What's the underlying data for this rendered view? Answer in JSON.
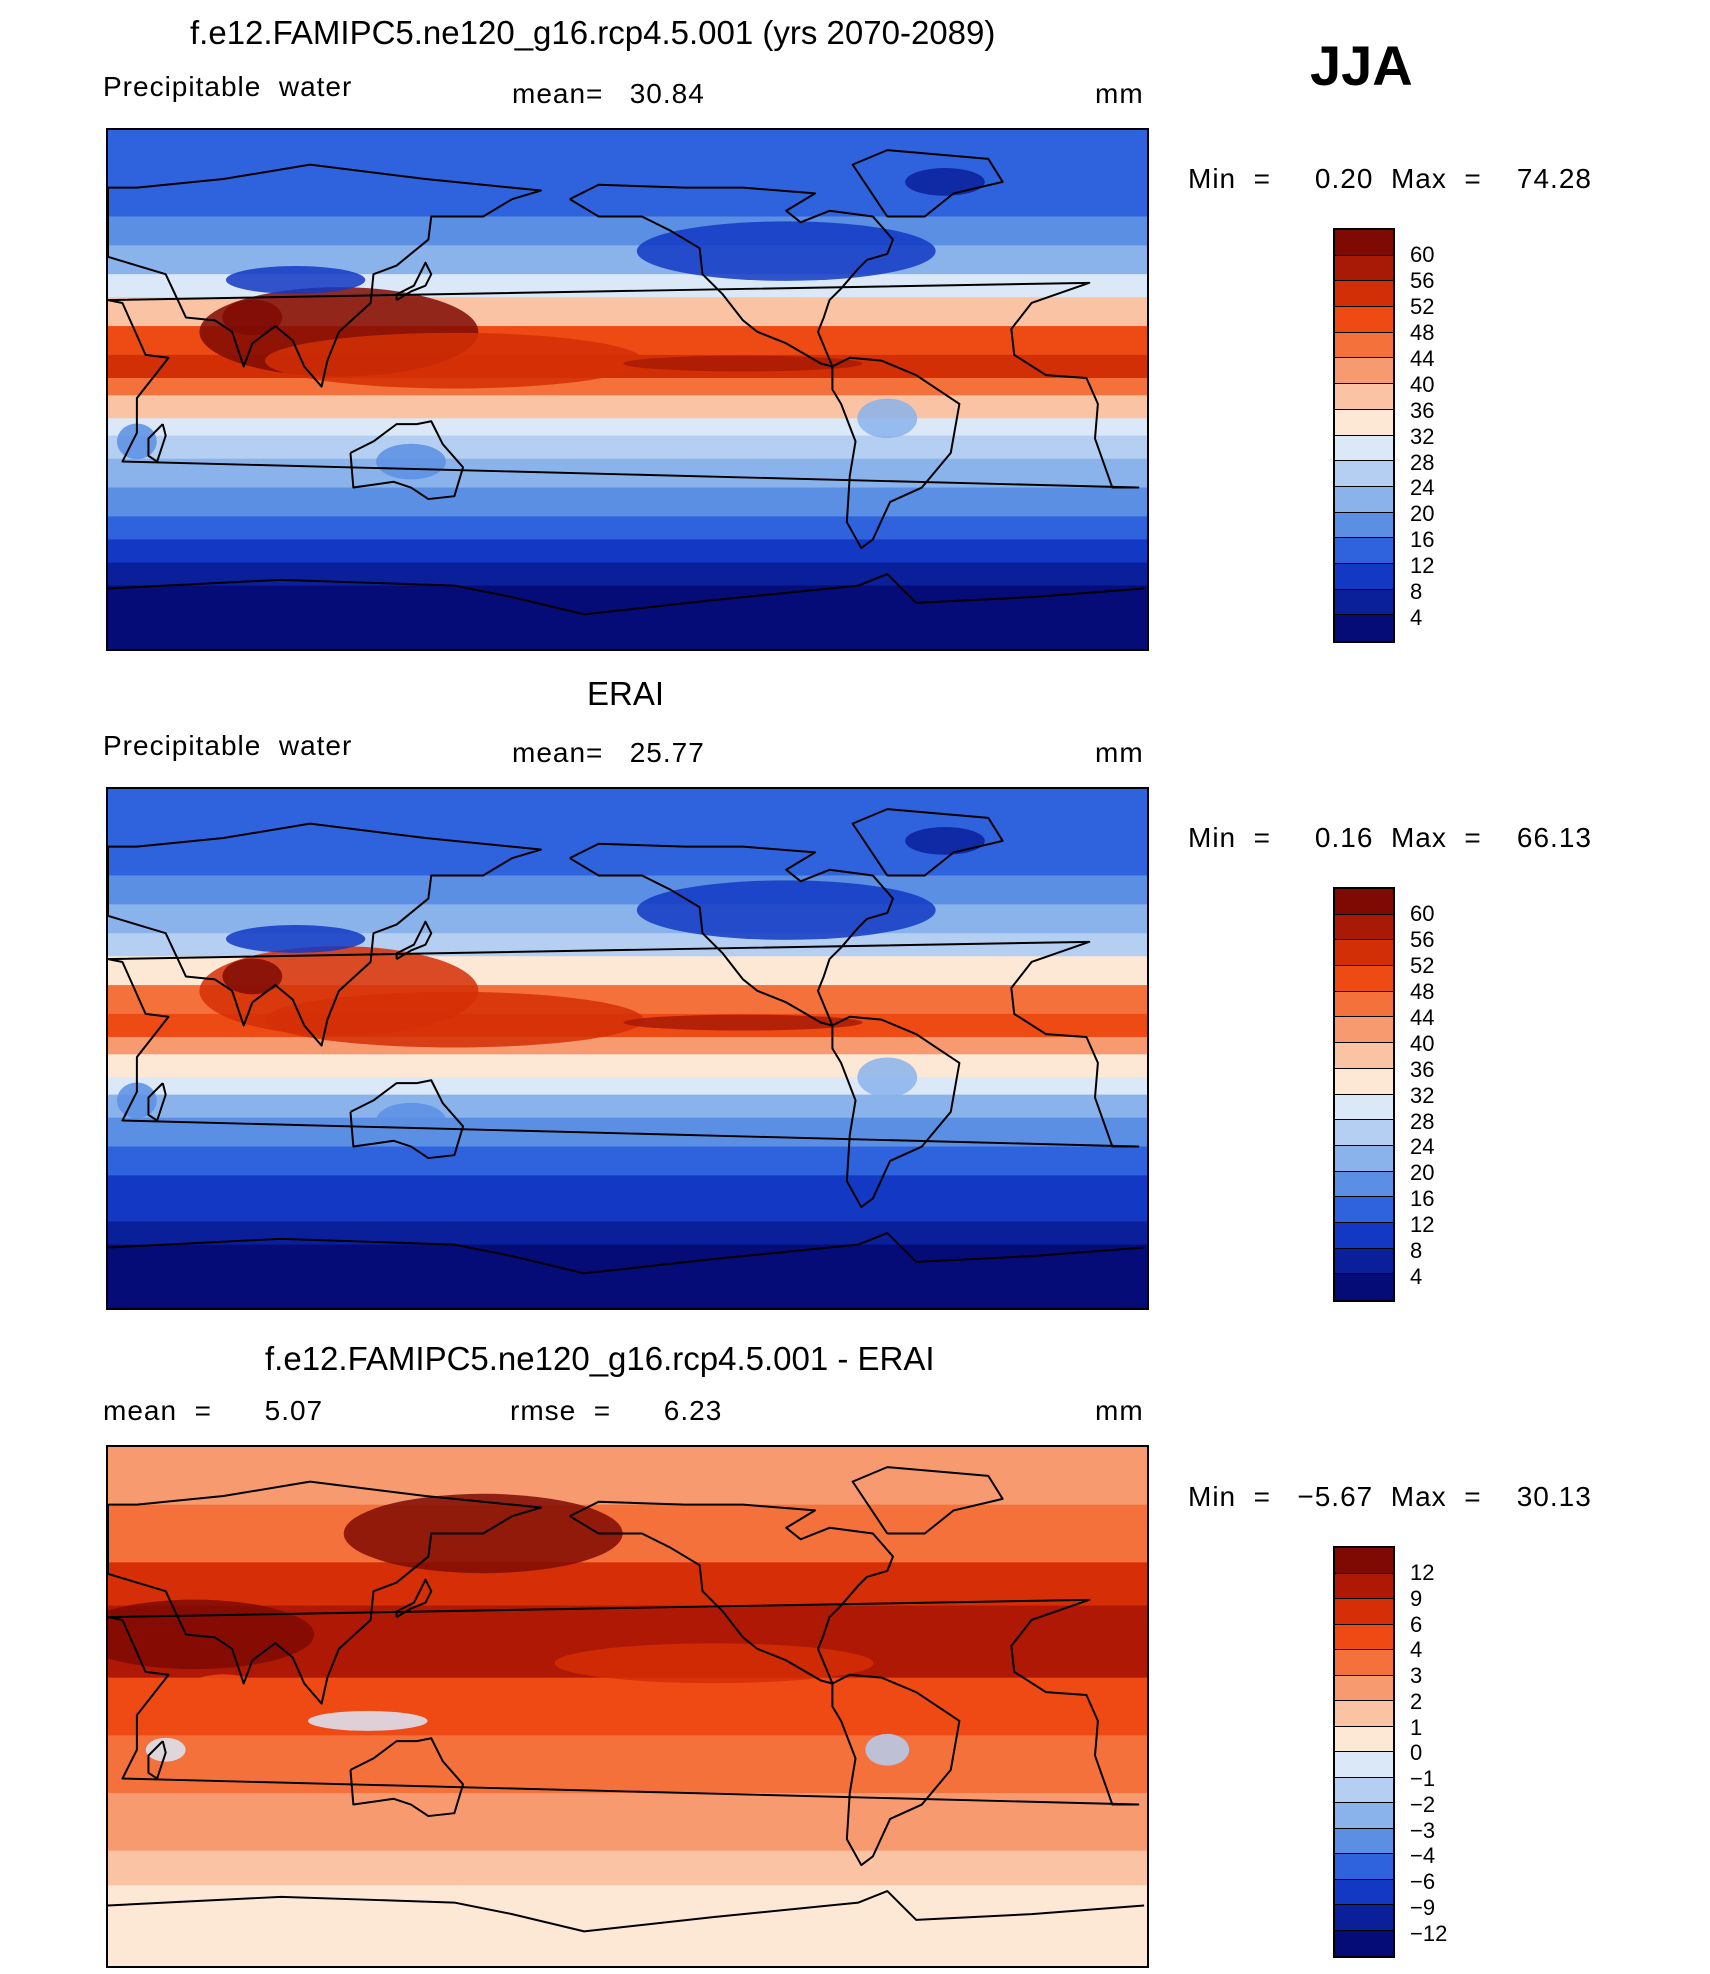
{
  "season": "JJA",
  "panels": [
    {
      "title": "f.e12.FAMIPC5.ne120_g16.rcp4.5.001 (yrs 2070-2089)",
      "left_label": "Precipitable  water",
      "center_label": "mean=   30.84",
      "units": "mm",
      "minmax": "Min  =     0.20  Max  =    74.28",
      "colorbar": {
        "labels": [
          "60",
          "56",
          "52",
          "48",
          "44",
          "40",
          "36",
          "32",
          "28",
          "24",
          "20",
          "16",
          "12",
          "8",
          "4"
        ],
        "colors": [
          "#7f0a04",
          "#a81a06",
          "#d32f06",
          "#ee4a14",
          "#f4713b",
          "#f79a70",
          "#fac4a4",
          "#fde8d6",
          "#dbe8f8",
          "#b4cff2",
          "#8ab3ec",
          "#5b8fe4",
          "#2f63dd",
          "#1238c4",
          "#0a1f9a",
          "#050c78"
        ]
      },
      "map": {
        "type": "precipitable-water-field",
        "mean": 30.84,
        "min": 0.2,
        "max": 74.28,
        "tropical_max": 60
      }
    },
    {
      "title": "ERAI",
      "left_label": "Precipitable  water",
      "center_label": "mean=   25.77",
      "units": "mm",
      "minmax": "Min  =     0.16  Max  =    66.13",
      "colorbar": {
        "labels": [
          "60",
          "56",
          "52",
          "48",
          "44",
          "40",
          "36",
          "32",
          "28",
          "24",
          "20",
          "16",
          "12",
          "8",
          "4"
        ],
        "colors": [
          "#7f0a04",
          "#a81a06",
          "#d32f06",
          "#ee4a14",
          "#f4713b",
          "#f79a70",
          "#fac4a4",
          "#fde8d6",
          "#dbe8f8",
          "#b4cff2",
          "#8ab3ec",
          "#5b8fe4",
          "#2f63dd",
          "#1238c4",
          "#0a1f9a",
          "#050c78"
        ]
      },
      "map": {
        "type": "precipitable-water-field",
        "mean": 25.77,
        "min": 0.16,
        "max": 66.13,
        "tropical_max": 52
      }
    },
    {
      "title": "f.e12.FAMIPC5.ne120_g16.rcp4.5.001 - ERAI",
      "left_label": "mean  =      5.07",
      "center_label": "rmse  =      6.23",
      "units": "mm",
      "minmax": "Min  =   −5.67  Max  =    30.13",
      "colorbar": {
        "labels": [
          "12",
          "9",
          "6",
          "4",
          "3",
          "2",
          "1",
          "0",
          "−1",
          "−2",
          "−3",
          "−4",
          "−6",
          "−9",
          "−12"
        ],
        "colors": [
          "#7f0a04",
          "#b01806",
          "#d62e06",
          "#ef4a14",
          "#f4713b",
          "#f79a70",
          "#fac4a4",
          "#fde8d6",
          "#dbe8f8",
          "#b4cff2",
          "#8ab3ec",
          "#5b8fe4",
          "#2f63dd",
          "#1238c4",
          "#0a1f9a",
          "#050c78"
        ]
      },
      "map": {
        "type": "difference-field",
        "mean": 5.07,
        "rmse": 6.23,
        "min": -5.67,
        "max": 30.13
      }
    }
  ]
}
